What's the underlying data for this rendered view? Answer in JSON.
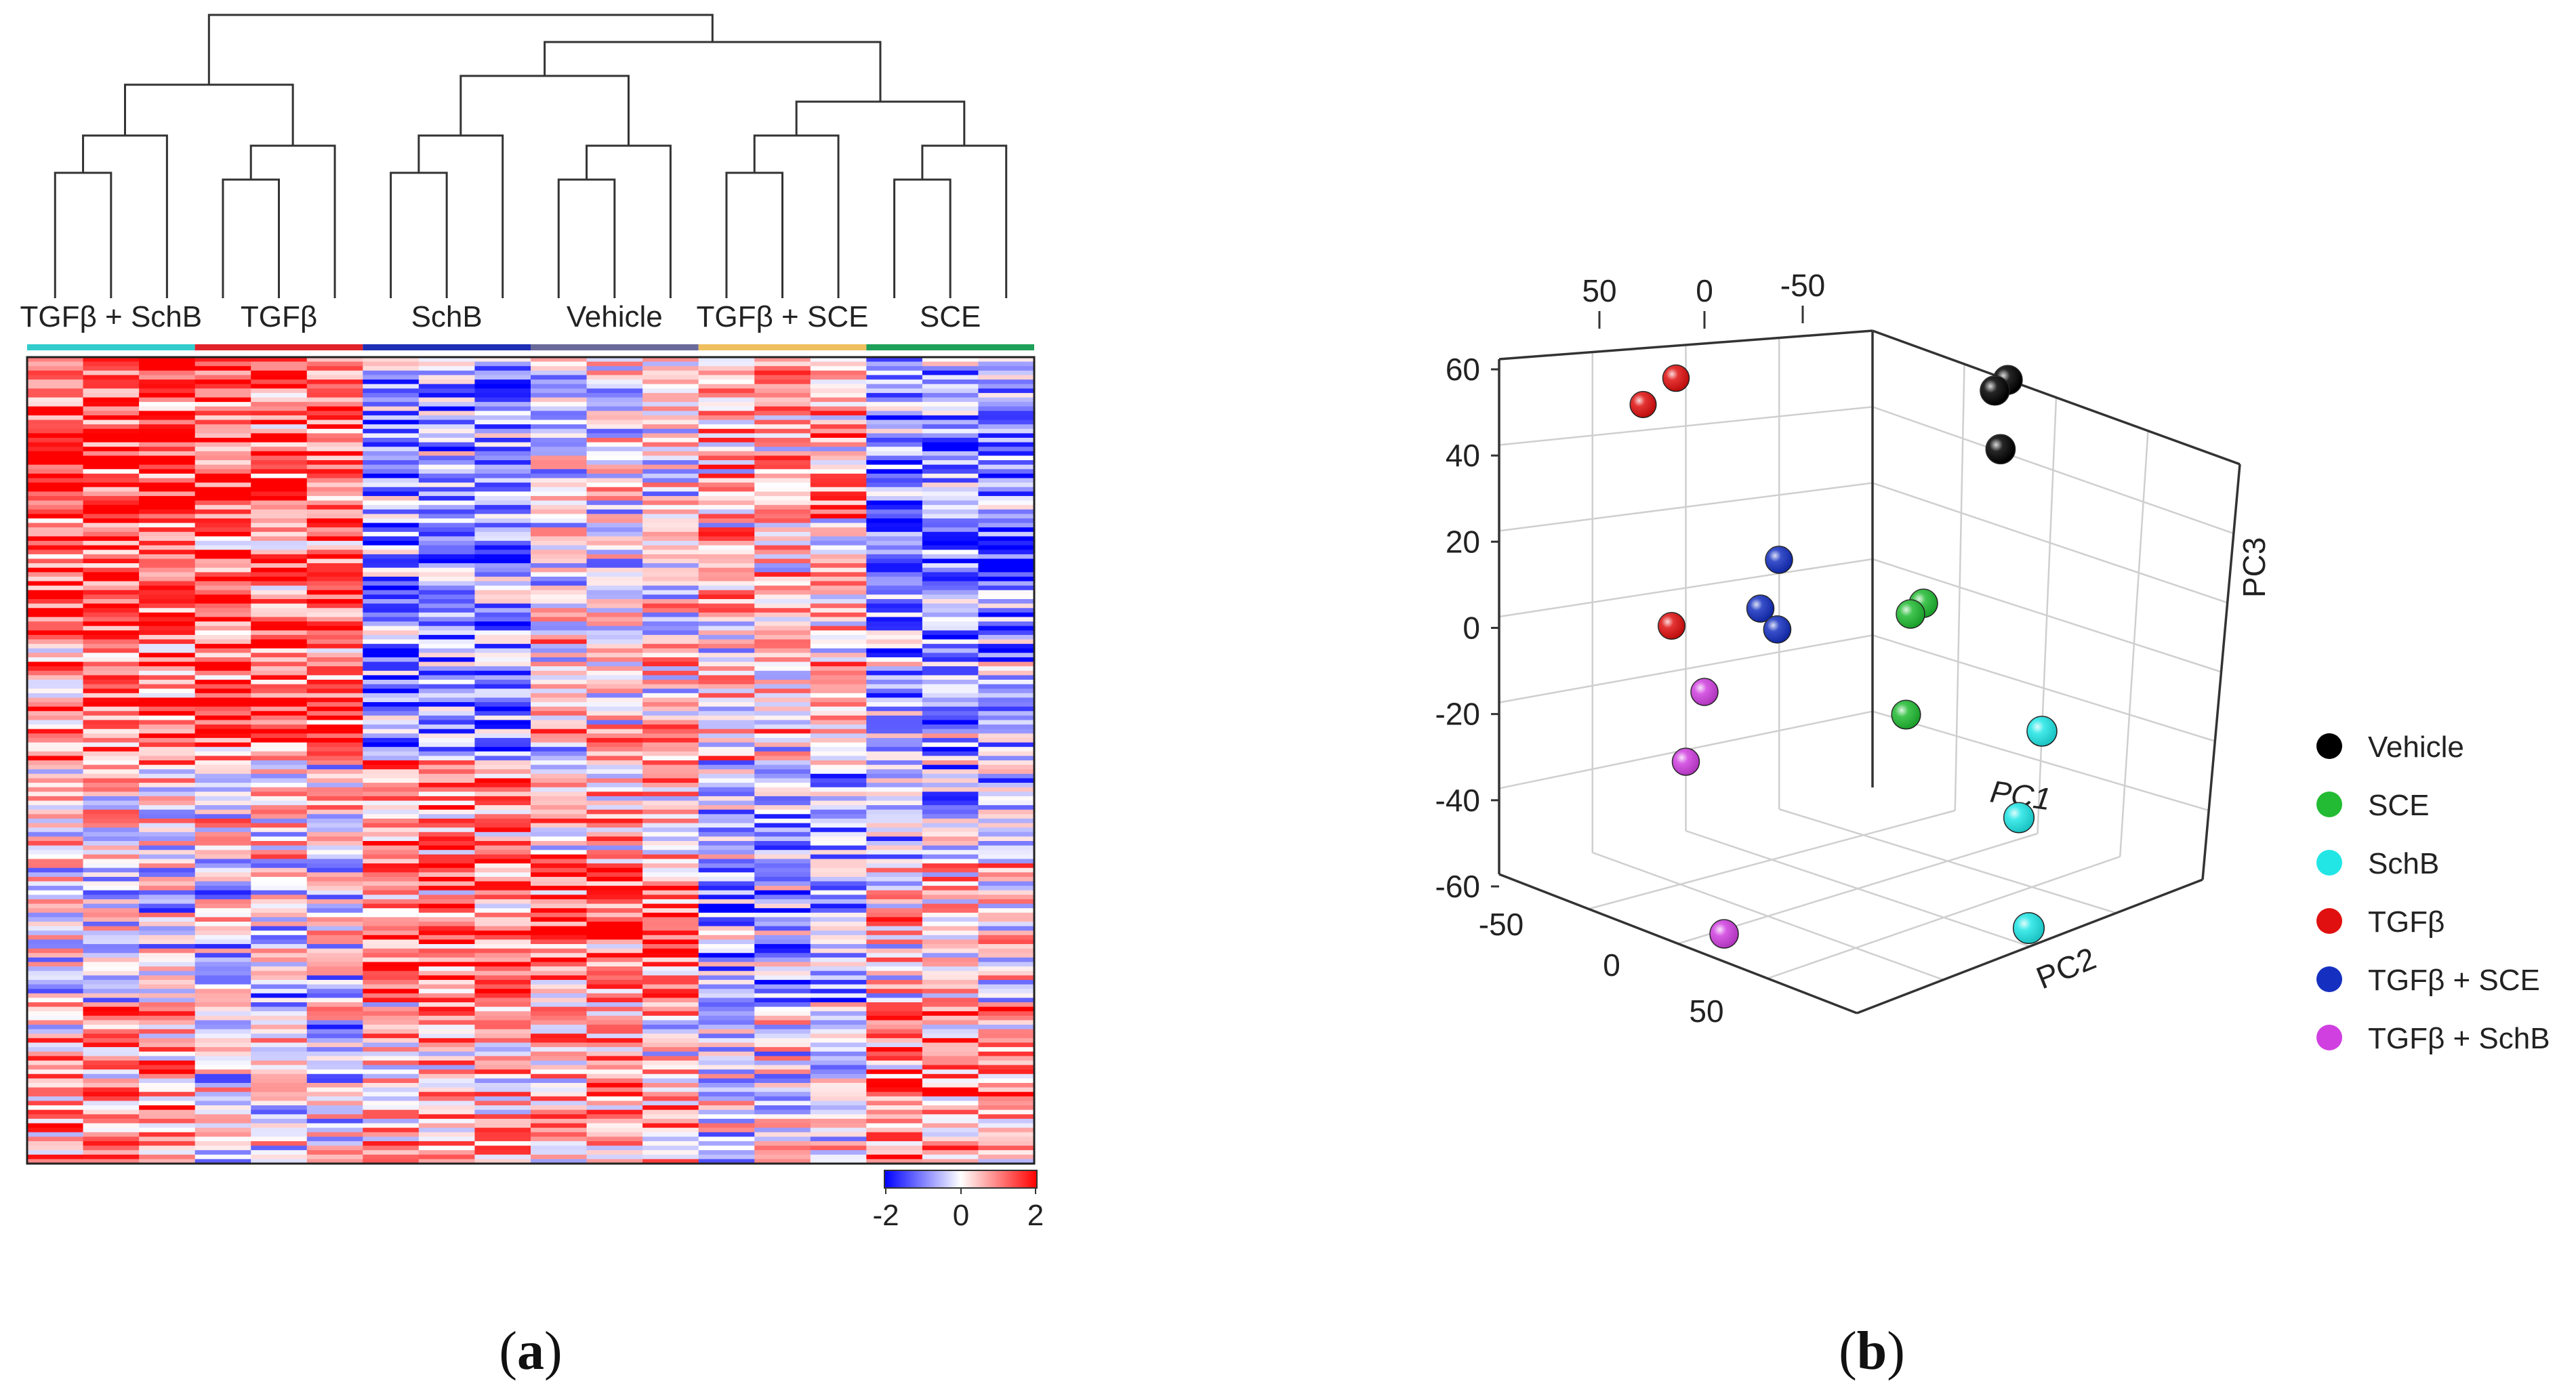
{
  "chart_data": [
    {
      "type": "heatmap",
      "panel_label": "(a)",
      "panel_label_parts": {
        "open": "(",
        "letter": "a",
        "close": ")"
      },
      "group_labels": [
        "TGFβ + SchB",
        "TGFβ",
        "SchB",
        "Vehicle",
        "TGFβ + SCE",
        "SCE"
      ],
      "group_colors": [
        "#33cccc",
        "#e0232b",
        "#1f2fb5",
        "#6a6a9a",
        "#f0c060",
        "#1fa05a"
      ],
      "samples_per_group": 3,
      "n_rows": 180,
      "colorscale": {
        "min": -2,
        "mid": 0,
        "max": 2,
        "low_color": "#0000ff",
        "mid_color": "#ffffff",
        "high_color": "#ff0000"
      },
      "colorbar_ticks": [
        "-2",
        "0",
        "2"
      ],
      "group_mean_profile": {
        "TGFβ + SchB": 1.0,
        "TGFβ": 0.9,
        "SchB": -0.3,
        "Vehicle": -0.1,
        "TGFβ + SCE": 0.0,
        "SCE": -0.6
      },
      "dendrogram": "Hierarchical clustering: ((TGFβ+SchB, TGFβ), ((SchB, Vehicle), (TGFβ+SCE, SCE)))"
    },
    {
      "type": "scatter",
      "subtype": "3d-pca",
      "panel_label": "(b)",
      "panel_label_parts": {
        "open": "(",
        "letter": "b",
        "close": ")"
      },
      "axes": {
        "x": {
          "label": "PC1",
          "ticks": [
            "50",
            "0",
            "-50"
          ]
        },
        "y": {
          "label": "PC2",
          "ticks": [
            "-50",
            "0",
            "50"
          ]
        },
        "z": {
          "label": "PC3",
          "ticks": [
            "60",
            "40",
            "20",
            "0",
            "-20",
            "-40",
            "-60"
          ],
          "range": [
            -60,
            60
          ]
        }
      },
      "legend": [
        {
          "name": "Vehicle",
          "color": "#000000"
        },
        {
          "name": "SCE",
          "color": "#22bb33"
        },
        {
          "name": "SchB",
          "color": "#22e6e6"
        },
        {
          "name": "TGFβ",
          "color": "#e01010"
        },
        {
          "name": "TGFβ + SCE",
          "color": "#1530c0"
        },
        {
          "name": "TGFβ + SchB",
          "color": "#d040e0"
        }
      ],
      "series": [
        {
          "name": "Vehicle",
          "points": [
            [
              -55,
              30,
              53
            ],
            [
              -60,
              28,
              53
            ],
            [
              -55,
              32,
              40
            ]
          ]
        },
        {
          "name": "SCE",
          "points": [
            [
              -40,
              20,
              0
            ],
            [
              -45,
              18,
              0
            ],
            [
              -35,
              25,
              -20
            ]
          ]
        },
        {
          "name": "SchB",
          "points": [
            [
              -60,
              40,
              -25
            ],
            [
              -50,
              45,
              -40
            ],
            [
              -45,
              55,
              -60
            ]
          ]
        },
        {
          "name": "TGFβ",
          "points": [
            [
              0,
              -10,
              55
            ],
            [
              5,
              -15,
              48
            ],
            [
              5,
              -5,
              0
            ]
          ]
        },
        {
          "name": "TGFβ + SCE",
          "points": [
            [
              -20,
              0,
              10
            ],
            [
              -15,
              0,
              0
            ],
            [
              -18,
              2,
              -5
            ]
          ]
        },
        {
          "name": "TGFβ + SchB",
          "points": [
            [
              0,
              0,
              -15
            ],
            [
              5,
              0,
              -30
            ],
            [
              10,
              20,
              -60
            ]
          ]
        }
      ]
    }
  ]
}
